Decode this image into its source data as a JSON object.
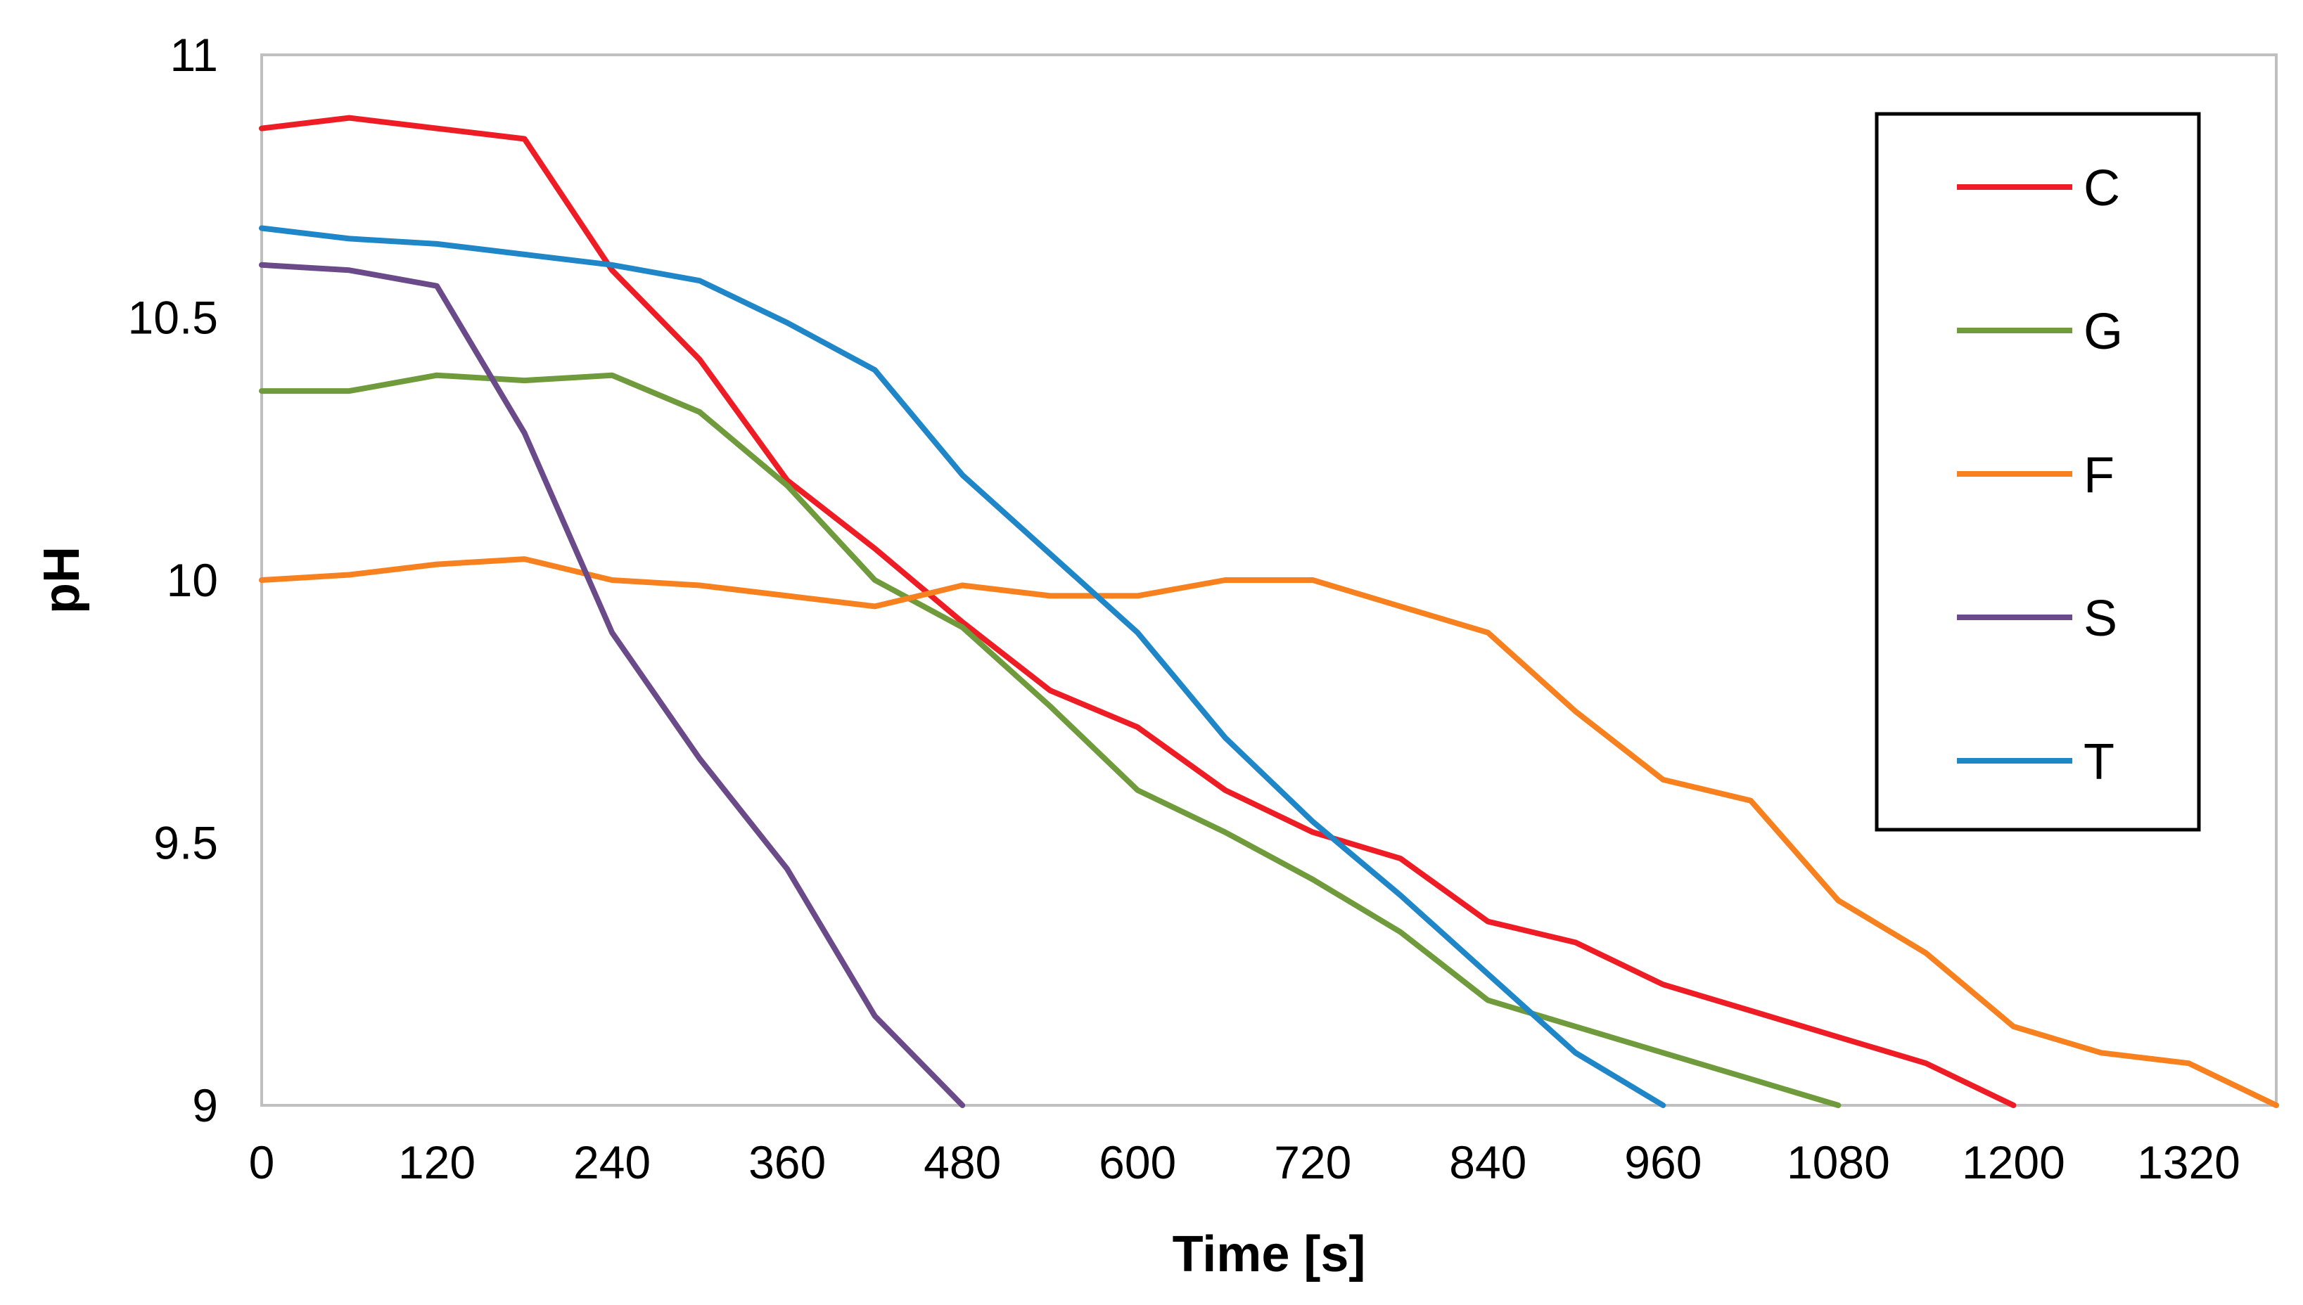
{
  "chart_data": {
    "type": "line",
    "title": "",
    "xlabel": "Time [s]",
    "ylabel": "pH",
    "xlim": [
      0,
      1380
    ],
    "ylim": [
      9,
      11
    ],
    "x_ticks": [
      0,
      120,
      240,
      360,
      480,
      600,
      720,
      840,
      960,
      1080,
      1200,
      1320
    ],
    "x_tick_labels": [
      "0",
      "120",
      "240",
      "360",
      "480",
      "600",
      "720",
      "840",
      "960",
      "1080",
      "1200",
      "1320"
    ],
    "y_ticks": [
      9,
      9.5,
      10,
      10.5,
      11
    ],
    "y_tick_labels": [
      "9",
      "9.5",
      "10",
      "10.5",
      "11"
    ],
    "grid": false,
    "legend_position": "top-right",
    "series": [
      {
        "name": "C",
        "color": "#ee1c25",
        "x": [
          0,
          60,
          120,
          180,
          240,
          300,
          360,
          420,
          480,
          540,
          600,
          660,
          720,
          780,
          840,
          900,
          960,
          1020,
          1080,
          1140,
          1200
        ],
        "values": [
          10.86,
          10.88,
          10.86,
          10.84,
          10.59,
          10.42,
          10.19,
          10.06,
          9.92,
          9.79,
          9.72,
          9.6,
          9.52,
          9.47,
          9.35,
          9.31,
          9.23,
          9.18,
          9.13,
          9.08,
          9.0
        ]
      },
      {
        "name": "G",
        "color": "#6f9b3c",
        "x": [
          0,
          60,
          120,
          180,
          240,
          300,
          360,
          420,
          480,
          540,
          600,
          660,
          720,
          780,
          840,
          900,
          960,
          1020,
          1080
        ],
        "values": [
          10.36,
          10.36,
          10.39,
          10.38,
          10.39,
          10.32,
          10.18,
          10.0,
          9.91,
          9.76,
          9.6,
          9.52,
          9.43,
          9.33,
          9.2,
          9.15,
          9.1,
          9.05,
          9.0
        ]
      },
      {
        "name": "F",
        "color": "#f7801f",
        "x": [
          0,
          60,
          120,
          180,
          240,
          300,
          360,
          420,
          480,
          540,
          600,
          660,
          720,
          780,
          840,
          900,
          960,
          1020,
          1080,
          1140,
          1200,
          1260,
          1320,
          1380
        ],
        "values": [
          10.0,
          10.01,
          10.03,
          10.04,
          10.0,
          9.99,
          9.97,
          9.95,
          9.99,
          9.97,
          9.97,
          10.0,
          10.0,
          9.95,
          9.9,
          9.75,
          9.62,
          9.58,
          9.39,
          9.29,
          9.15,
          9.1,
          9.08,
          9.0
        ]
      },
      {
        "name": "S",
        "color": "#6a4a89",
        "x": [
          0,
          60,
          120,
          180,
          240,
          300,
          360,
          420,
          480
        ],
        "values": [
          10.6,
          10.59,
          10.56,
          10.28,
          9.9,
          9.66,
          9.45,
          9.17,
          9.0
        ]
      },
      {
        "name": "T",
        "color": "#1f86c8",
        "x": [
          0,
          60,
          120,
          180,
          240,
          300,
          360,
          420,
          480,
          540,
          600,
          660,
          720,
          780,
          840,
          900,
          960
        ],
        "values": [
          10.67,
          10.65,
          10.64,
          10.62,
          10.6,
          10.57,
          10.49,
          10.4,
          10.2,
          10.05,
          9.9,
          9.7,
          9.54,
          9.4,
          9.25,
          9.1,
          9.0
        ]
      }
    ]
  }
}
